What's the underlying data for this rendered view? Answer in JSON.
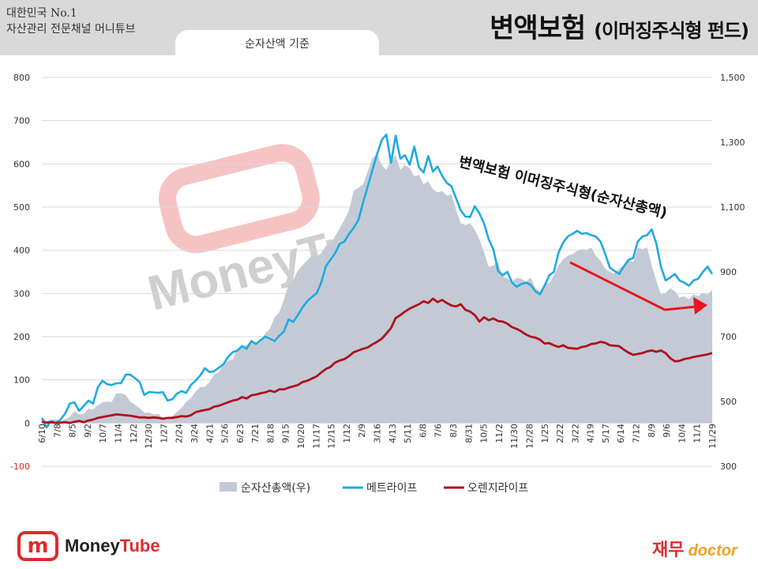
{
  "header": {
    "brand_line1": "대한민국 No.1",
    "brand_line2": "자산관리 전문채널 머니튜브",
    "title": "변액보험",
    "title_sub": "(이머징주식형 펀드)",
    "tab_label": "순자산액 기준"
  },
  "watermark": {
    "text": "MoneyTube"
  },
  "footer": {
    "logo_mark": "m",
    "logo_text_part1": "Money",
    "logo_text_part2": "Tube",
    "right_logo_korean": "재무",
    "right_logo_english": "doctor"
  },
  "chart_data": {
    "type": "line",
    "annotation": "변액보험 이머징주식형(순자산총액)",
    "x_ticks": [
      "6/10",
      "7/8",
      "8/5",
      "9/2",
      "10/7",
      "11/4",
      "12/2",
      "12/30",
      "1/27",
      "2/24",
      "3/24",
      "4/21",
      "5/26",
      "6/23",
      "7/21",
      "8/18",
      "9/15",
      "10/20",
      "11/17",
      "12/15",
      "1/12",
      "2/9",
      "3/16",
      "4/13",
      "5/11",
      "6/8",
      "7/6",
      "8/3",
      "8/31",
      "10/5",
      "11/2",
      "11/30",
      "12/28",
      "1/25",
      "2/22",
      "3/22",
      "4/19",
      "5/17",
      "6/14",
      "7/12",
      "8/9",
      "9/6",
      "10/4",
      "11/1",
      "11/29"
    ],
    "y_left": {
      "min": -100,
      "max": 800,
      "ticks": [
        -100,
        0,
        100,
        200,
        300,
        400,
        500,
        600,
        700,
        800
      ]
    },
    "y_right": {
      "min": 300,
      "max": 1500,
      "ticks": [
        300,
        500,
        700,
        900,
        1100,
        1300,
        1500
      ]
    },
    "legend": [
      "순자산총액(우)",
      "메트라이프",
      "오렌지라이프"
    ],
    "colors": {
      "area": "#c3cad6",
      "metlife": "#1eaae0",
      "orange": "#b0101e",
      "arrow": "#e8141e"
    },
    "series": [
      {
        "name": "순자산총액(우)",
        "axis": "right",
        "values": [
          452,
          440,
          442,
          445,
          438,
          445,
          452,
          470,
          460,
          462,
          478,
          476,
          488,
          497,
          500,
          498,
          525,
          525,
          520,
          500,
          490,
          480,
          465,
          466,
          460,
          462,
          450,
          445,
          455,
          468,
          480,
          498,
          510,
          530,
          545,
          545,
          560,
          582,
          590,
          615,
          625,
          630,
          660,
          670,
          675,
          685,
          680,
          690,
          710,
          725,
          760,
          775,
          815,
          860,
          875,
          905,
          920,
          935,
          950,
          945,
          958,
          980,
          985,
          1010,
          1035,
          1060,
          1090,
          1150,
          1160,
          1170,
          1210,
          1250,
          1265,
          1230,
          1215,
          1245,
          1260,
          1215,
          1230,
          1220,
          1195,
          1200,
          1170,
          1180,
          1155,
          1145,
          1150,
          1135,
          1140,
          1090,
          1050,
          1045,
          1050,
          1030,
          1000,
          960,
          915,
          920,
          930,
          885,
          880,
          870,
          882,
          878,
          870,
          882,
          850,
          840,
          865,
          865,
          890,
          920,
          938,
          950,
          955,
          965,
          970,
          968,
          975,
          950,
          935,
          910,
          900,
          895,
          910,
          920,
          940,
          930,
          975,
          970,
          975,
          920,
          872,
          830,
          835,
          850,
          840,
          820,
          825,
          815,
          830,
          825,
          835,
          830,
          845
        ]
      },
      {
        "name": "메트라이프",
        "axis": "left",
        "values": [
          12,
          -10,
          5,
          0,
          8,
          22,
          45,
          48,
          28,
          40,
          52,
          45,
          82,
          98,
          90,
          88,
          92,
          92,
          112,
          112,
          104,
          95,
          65,
          72,
          71,
          70,
          72,
          52,
          55,
          68,
          74,
          70,
          88,
          98,
          110,
          127,
          118,
          120,
          128,
          136,
          153,
          164,
          168,
          178,
          172,
          190,
          183,
          192,
          200,
          195,
          190,
          202,
          212,
          240,
          234,
          250,
          268,
          282,
          292,
          300,
          325,
          362,
          378,
          393,
          415,
          420,
          438,
          452,
          470,
          510,
          548,
          585,
          622,
          655,
          668,
          602,
          665,
          612,
          620,
          598,
          640,
          592,
          580,
          618,
          582,
          594,
          572,
          556,
          548,
          520,
          492,
          478,
          477,
          502,
          485,
          462,
          425,
          402,
          352,
          342,
          350,
          325,
          315,
          322,
          325,
          320,
          305,
          298,
          318,
          342,
          350,
          395,
          418,
          432,
          438,
          445,
          438,
          440,
          435,
          432,
          420,
          392,
          360,
          352,
          345,
          362,
          378,
          382,
          420,
          432,
          435,
          448,
          415,
          362,
          330,
          337,
          345,
          330,
          325,
          318,
          330,
          334,
          350,
          362,
          345
        ]
      },
      {
        "name": "오렌지라이프",
        "axis": "left",
        "values": [
          3,
          1,
          2,
          0,
          1,
          2,
          0,
          3,
          5,
          2,
          6,
          8,
          12,
          14,
          16,
          18,
          20,
          19,
          18,
          17,
          15,
          13,
          13,
          12,
          13,
          12,
          10,
          12,
          12,
          14,
          16,
          15,
          18,
          25,
          28,
          30,
          32,
          38,
          40,
          44,
          48,
          52,
          54,
          60,
          57,
          64,
          66,
          69,
          71,
          75,
          72,
          78,
          78,
          82,
          85,
          88,
          95,
          98,
          103,
          108,
          117,
          125,
          130,
          140,
          145,
          148,
          155,
          164,
          168,
          172,
          175,
          182,
          188,
          195,
          207,
          220,
          243,
          250,
          258,
          265,
          270,
          275,
          282,
          278,
          288,
          280,
          285,
          278,
          272,
          270,
          275,
          262,
          258,
          250,
          235,
          245,
          238,
          242,
          236,
          235,
          230,
          222,
          218,
          212,
          205,
          200,
          198,
          193,
          184,
          185,
          180,
          176,
          180,
          174,
          173,
          172,
          176,
          178,
          183,
          184,
          188,
          186,
          180,
          179,
          178,
          170,
          163,
          158,
          160,
          162,
          166,
          168,
          165,
          168,
          162,
          150,
          143,
          144,
          148,
          150,
          153,
          155,
          157,
          159,
          162
        ]
      }
    ]
  }
}
